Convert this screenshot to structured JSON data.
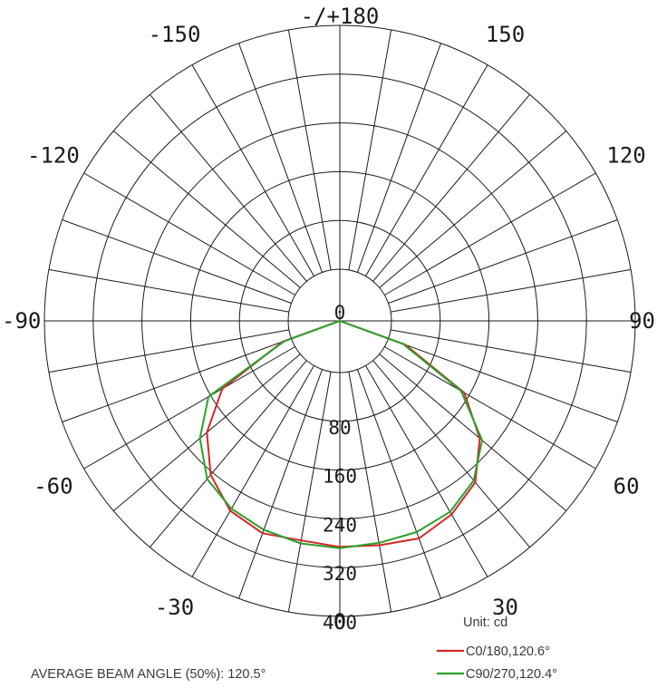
{
  "chart_data": {
    "type": "polar",
    "angle_labels": [
      {
        "angle": 180,
        "text": "-/+180"
      },
      {
        "angle": -150,
        "text": "-150"
      },
      {
        "angle": 150,
        "text": "150"
      },
      {
        "angle": -120,
        "text": "-120"
      },
      {
        "angle": 120,
        "text": "120"
      },
      {
        "angle": -90,
        "text": "-90"
      },
      {
        "angle": 90,
        "text": "90"
      },
      {
        "angle": -60,
        "text": "-60"
      },
      {
        "angle": 60,
        "text": "60"
      },
      {
        "angle": -30,
        "text": "-30"
      },
      {
        "angle": 30,
        "text": "30"
      },
      {
        "angle": 0,
        "text": "0"
      }
    ],
    "radial_labels": [
      "0",
      "80",
      "160",
      "240",
      "320",
      "400"
    ],
    "rlim": [
      0,
      400
    ],
    "grid_step_deg": 10,
    "unit_label": "Unit: cd",
    "series": [
      {
        "name": "C0/180,120.6°",
        "color": "#d62728",
        "angles": [
          -90,
          -70,
          -60,
          -50,
          -40,
          -30,
          -20,
          -10,
          0,
          10,
          20,
          30,
          40,
          50,
          60,
          70,
          90
        ],
        "values": [
          0,
          15,
          138,
          200,
          245,
          275,
          286,
          281,
          286,
          289,
          295,
          282,
          261,
          215,
          151,
          30,
          0
        ]
      },
      {
        "name": "C90/270,120.4°",
        "color": "#2ca02c",
        "angles": [
          -90,
          -70,
          -60,
          -50,
          -40,
          -30,
          -20,
          -10,
          0,
          10,
          20,
          30,
          40,
          50,
          60,
          70,
          90
        ],
        "values": [
          0,
          12,
          164,
          215,
          254,
          271,
          280,
          286,
          288,
          285,
          284,
          277,
          257,
          220,
          145,
          25,
          0
        ]
      }
    ]
  },
  "note": "AVERAGE BEAM ANGLE (50%): 120.5°"
}
